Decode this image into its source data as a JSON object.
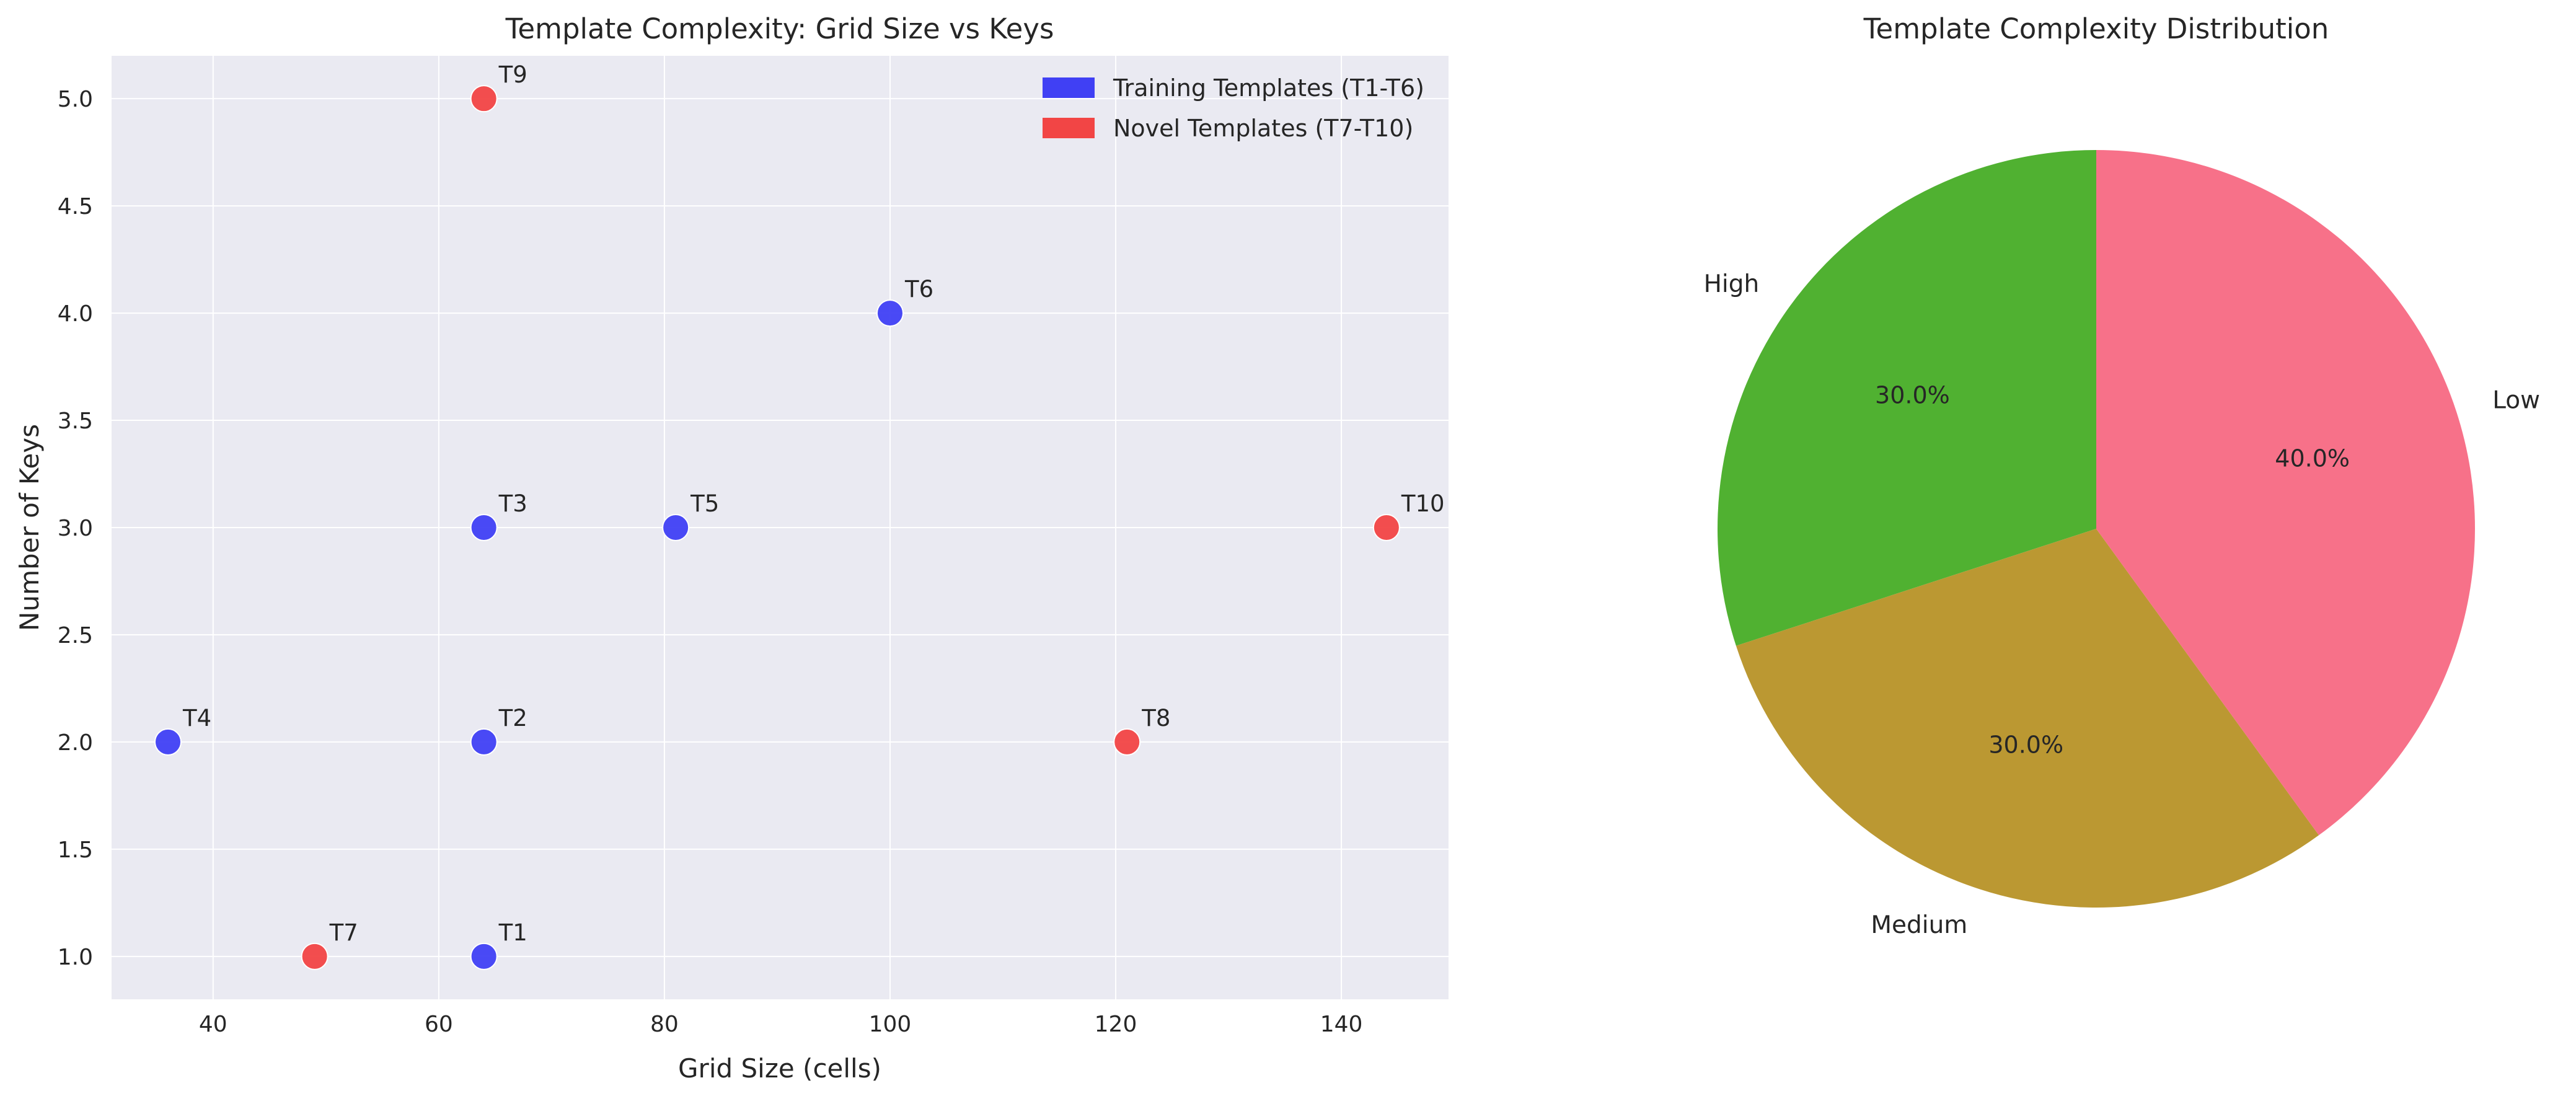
{
  "chart_data": [
    {
      "type": "scatter",
      "title": "Template Complexity: Grid Size vs Keys",
      "xlabel": "Grid Size (cells)",
      "ylabel": "Number of Keys",
      "xlim": [
        31,
        149.5
      ],
      "ylim": [
        0.8,
        5.2
      ],
      "xticks": [
        40,
        60,
        80,
        100,
        120,
        140
      ],
      "yticks": [
        1.0,
        1.5,
        2.0,
        2.5,
        3.0,
        3.5,
        4.0,
        4.5,
        5.0
      ],
      "grid": true,
      "legend_position": "top-right",
      "series": [
        {
          "name": "Training Templates (T1-T6)",
          "color": "#4040f4",
          "points": [
            {
              "label": "T1",
              "x": 64,
              "y": 1
            },
            {
              "label": "T2",
              "x": 64,
              "y": 2
            },
            {
              "label": "T3",
              "x": 64,
              "y": 3
            },
            {
              "label": "T4",
              "x": 36,
              "y": 2
            },
            {
              "label": "T5",
              "x": 81,
              "y": 3
            },
            {
              "label": "T6",
              "x": 100,
              "y": 4
            }
          ]
        },
        {
          "name": "Novel Templates (T7-T10)",
          "color": "#f24545",
          "points": [
            {
              "label": "T7",
              "x": 49,
              "y": 1
            },
            {
              "label": "T8",
              "x": 121,
              "y": 2
            },
            {
              "label": "T9",
              "x": 64,
              "y": 5
            },
            {
              "label": "T10",
              "x": 144,
              "y": 3
            }
          ]
        }
      ]
    },
    {
      "type": "pie",
      "title": "Template Complexity Distribution",
      "slices": [
        {
          "label": "High",
          "value": 30,
          "pct_label": "30.0%",
          "color": "#50b131"
        },
        {
          "label": "Medium",
          "value": 30,
          "pct_label": "30.0%",
          "color": "#bb9832"
        },
        {
          "label": "Low",
          "value": 40,
          "pct_label": "40.0%",
          "color": "#f77189"
        }
      ]
    }
  ]
}
